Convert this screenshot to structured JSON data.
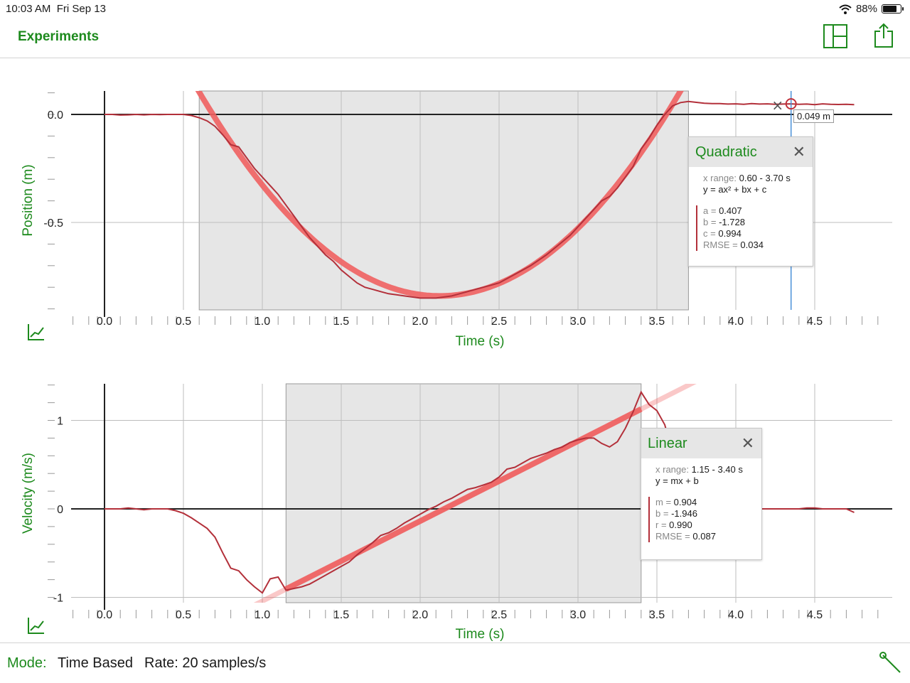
{
  "status_bar": {
    "time": "10:03 AM",
    "date": "Fri Sep 13",
    "battery": "88%",
    "battery_level": 0.88
  },
  "nav": {
    "back_label": "Experiments",
    "icons": [
      "layout-icon",
      "share-icon"
    ]
  },
  "colors": {
    "accent": "#1d8a1d",
    "data": "#b3303a",
    "fit": "#f06060",
    "selection": "#e6e6e6",
    "cursor": "#4a90d9"
  },
  "cursor": {
    "value_label": "0.049 m",
    "time": 4.35,
    "value": 0.049
  },
  "graphs": [
    {
      "ylabel": "Position (m)",
      "xlabel": "Time (s)",
      "yticks": [
        "0.0",
        "-0.5"
      ],
      "xticks": [
        "0.0",
        "0.5",
        "1.0",
        "1.5",
        "2.0",
        "2.5",
        "3.0",
        "3.5",
        "4.0",
        "4.5"
      ],
      "selection_range": [
        0.6,
        3.7
      ],
      "fit": {
        "title": "Quadratic",
        "x_range_label": "x range:",
        "x_range": "0.60 - 3.70 s",
        "equation": "y = ax² + bx + c",
        "coefficients": [
          {
            "name": "a =",
            "value": "0.407"
          },
          {
            "name": "b =",
            "value": "-1.728"
          },
          {
            "name": "c =",
            "value": "0.994"
          },
          {
            "name": "RMSE =",
            "value": "0.034"
          }
        ]
      }
    },
    {
      "ylabel": "Velocity (m/s)",
      "xlabel": "Time (s)",
      "yticks": [
        "1",
        "0",
        "-1"
      ],
      "xticks": [
        "0.0",
        "0.5",
        "1.0",
        "1.5",
        "2.0",
        "2.5",
        "3.0",
        "3.5",
        "4.0",
        "4.5"
      ],
      "selection_range": [
        1.15,
        3.4
      ],
      "fit": {
        "title": "Linear",
        "x_range_label": "x range:",
        "x_range": "1.15 - 3.40 s",
        "equation": "y = mx + b",
        "coefficients": [
          {
            "name": "m =",
            "value": "0.904"
          },
          {
            "name": "b =",
            "value": "-1.946"
          },
          {
            "name": "r =",
            "value": "0.990"
          },
          {
            "name": "RMSE =",
            "value": "0.087"
          }
        ]
      }
    }
  ],
  "chart_data": [
    {
      "type": "line",
      "xlabel": "Time (s)",
      "ylabel": "Position (m)",
      "xlim": [
        -0.2,
        5.0
      ],
      "ylim": [
        -0.9,
        0.12
      ],
      "x": [
        0.0,
        0.05,
        0.1,
        0.15,
        0.2,
        0.25,
        0.3,
        0.35,
        0.4,
        0.45,
        0.5,
        0.55,
        0.6,
        0.65,
        0.7,
        0.75,
        0.8,
        0.85,
        0.9,
        0.95,
        1.0,
        1.05,
        1.1,
        1.15,
        1.2,
        1.25,
        1.3,
        1.35,
        1.4,
        1.45,
        1.5,
        1.55,
        1.6,
        1.65,
        1.7,
        1.75,
        1.8,
        1.85,
        1.9,
        1.95,
        2.0,
        2.05,
        2.1,
        2.15,
        2.2,
        2.25,
        2.3,
        2.35,
        2.4,
        2.45,
        2.5,
        2.55,
        2.6,
        2.65,
        2.7,
        2.75,
        2.8,
        2.85,
        2.9,
        2.95,
        3.0,
        3.05,
        3.1,
        3.15,
        3.2,
        3.25,
        3.3,
        3.35,
        3.4,
        3.45,
        3.5,
        3.55,
        3.6,
        3.65,
        3.7,
        3.75,
        3.8,
        3.85,
        3.9,
        3.95,
        4.0,
        4.05,
        4.1,
        4.15,
        4.2,
        4.25,
        4.3,
        4.35,
        4.4,
        4.45,
        4.5,
        4.55,
        4.6,
        4.65,
        4.7,
        4.75
      ],
      "y": [
        0,
        0,
        -0.003,
        -0.002,
        0,
        -0.002,
        0,
        -0.001,
        0,
        0,
        0,
        -0.005,
        -0.015,
        -0.03,
        -0.055,
        -0.095,
        -0.14,
        -0.15,
        -0.2,
        -0.25,
        -0.29,
        -0.33,
        -0.37,
        -0.42,
        -0.47,
        -0.52,
        -0.57,
        -0.61,
        -0.65,
        -0.68,
        -0.72,
        -0.75,
        -0.78,
        -0.8,
        -0.81,
        -0.82,
        -0.83,
        -0.835,
        -0.84,
        -0.845,
        -0.85,
        -0.85,
        -0.85,
        -0.845,
        -0.84,
        -0.83,
        -0.82,
        -0.81,
        -0.8,
        -0.79,
        -0.78,
        -0.76,
        -0.74,
        -0.72,
        -0.7,
        -0.675,
        -0.65,
        -0.62,
        -0.59,
        -0.56,
        -0.52,
        -0.48,
        -0.44,
        -0.4,
        -0.38,
        -0.34,
        -0.29,
        -0.24,
        -0.16,
        -0.11,
        -0.05,
        0,
        0.04,
        0.055,
        0.06,
        0.056,
        0.052,
        0.05,
        0.05,
        0.048,
        0.049,
        0.047,
        0.05,
        0.048,
        0.049,
        0.047,
        0.048,
        0.049,
        0.047,
        0.048,
        0.045,
        0.049,
        0.047,
        0.046,
        0.047,
        0.045
      ],
      "fit": {
        "model": "quadratic",
        "a": 0.407,
        "b": -1.728,
        "c": 0.994,
        "x_range": [
          0.6,
          3.7
        ]
      }
    },
    {
      "type": "line",
      "xlabel": "Time (s)",
      "ylabel": "Velocity (m/s)",
      "xlim": [
        -0.2,
        5.0
      ],
      "ylim": [
        -1.05,
        1.4
      ],
      "x": [
        0.0,
        0.05,
        0.1,
        0.15,
        0.2,
        0.25,
        0.3,
        0.35,
        0.4,
        0.45,
        0.5,
        0.55,
        0.6,
        0.65,
        0.7,
        0.75,
        0.8,
        0.85,
        0.9,
        0.95,
        1.0,
        1.05,
        1.1,
        1.15,
        1.2,
        1.25,
        1.3,
        1.35,
        1.4,
        1.45,
        1.5,
        1.55,
        1.6,
        1.65,
        1.7,
        1.75,
        1.8,
        1.85,
        1.9,
        1.95,
        2.0,
        2.05,
        2.1,
        2.15,
        2.2,
        2.25,
        2.3,
        2.35,
        2.4,
        2.45,
        2.5,
        2.55,
        2.6,
        2.65,
        2.7,
        2.75,
        2.8,
        2.85,
        2.9,
        2.95,
        3.0,
        3.05,
        3.1,
        3.15,
        3.2,
        3.25,
        3.3,
        3.35,
        3.4,
        3.45,
        3.5,
        3.55,
        3.6,
        3.65,
        3.7,
        3.75,
        3.8,
        3.85,
        3.9,
        3.95,
        4.0,
        4.05,
        4.1,
        4.15,
        4.2,
        4.25,
        4.3,
        4.35,
        4.4,
        4.45,
        4.5,
        4.55,
        4.6,
        4.65,
        4.7,
        4.75
      ],
      "y": [
        0,
        0,
        0,
        0.01,
        0,
        -0.01,
        0,
        0,
        0,
        -0.02,
        -0.05,
        -0.1,
        -0.16,
        -0.22,
        -0.32,
        -0.5,
        -0.67,
        -0.7,
        -0.8,
        -0.88,
        -0.95,
        -0.79,
        -0.77,
        -0.92,
        -0.9,
        -0.88,
        -0.85,
        -0.8,
        -0.75,
        -0.7,
        -0.65,
        -0.6,
        -0.52,
        -0.45,
        -0.38,
        -0.3,
        -0.27,
        -0.22,
        -0.16,
        -0.11,
        -0.06,
        -0.01,
        0.03,
        0.08,
        0.12,
        0.17,
        0.22,
        0.24,
        0.27,
        0.3,
        0.36,
        0.45,
        0.47,
        0.52,
        0.57,
        0.6,
        0.63,
        0.67,
        0.7,
        0.75,
        0.78,
        0.8,
        0.8,
        0.74,
        0.7,
        0.76,
        0.91,
        1.1,
        1.32,
        1.18,
        1.11,
        0.95,
        0.62,
        0.32,
        0.12,
        0.02,
        0,
        0,
        0,
        0,
        0,
        0,
        0.01,
        0,
        0,
        0,
        0,
        0,
        0,
        0.01,
        0.01,
        0,
        0,
        0,
        0,
        -0.04
      ],
      "fit": {
        "model": "linear",
        "m": 0.904,
        "b": -1.946,
        "x_range": [
          1.15,
          3.4
        ]
      }
    }
  ],
  "bottom_bar": {
    "mode_label": "Mode:",
    "mode_value": "Time Based",
    "rate": "Rate: 20 samples/s"
  }
}
